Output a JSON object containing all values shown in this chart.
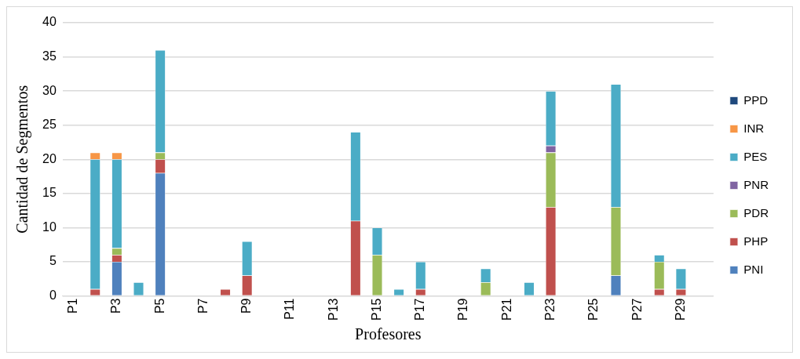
{
  "chart_data": {
    "type": "bar",
    "stacked": true,
    "xlabel": "Profesores",
    "ylabel": "Cantidad de Segmentos",
    "categories": [
      "P1",
      null,
      "P3",
      null,
      "P5",
      null,
      "P7",
      null,
      "P9",
      null,
      "P11",
      null,
      "P13",
      null,
      "P15",
      null,
      "P17",
      null,
      "P19",
      null,
      "P21",
      null,
      "P23",
      null,
      "P25",
      null,
      "P27",
      null,
      "P29",
      null
    ],
    "series": [
      {
        "name": "PNI",
        "color": "#4f81bd",
        "values": [
          0,
          0,
          5,
          0,
          18,
          0,
          0,
          0,
          0,
          0,
          0,
          0,
          0,
          0,
          0,
          0,
          0,
          0,
          0,
          0,
          0,
          0,
          0,
          0,
          0,
          3,
          0,
          0,
          0,
          0
        ]
      },
      {
        "name": "PHP",
        "color": "#c0504d",
        "values": [
          0,
          1,
          1,
          0,
          2,
          0,
          0,
          1,
          3,
          0,
          0,
          0,
          0,
          11,
          0,
          0,
          1,
          0,
          0,
          0,
          0,
          0,
          13,
          0,
          0,
          0,
          0,
          1,
          1,
          0
        ]
      },
      {
        "name": "PDR",
        "color": "#9bbb59",
        "values": [
          0,
          0,
          1,
          0,
          1,
          0,
          0,
          0,
          0,
          0,
          0,
          0,
          0,
          0,
          6,
          0,
          0,
          0,
          0,
          2,
          0,
          0,
          8,
          0,
          0,
          10,
          0,
          4,
          0,
          0
        ]
      },
      {
        "name": "PNR",
        "color": "#8064a2",
        "values": [
          0,
          0,
          0,
          0,
          0,
          0,
          0,
          0,
          0,
          0,
          0,
          0,
          0,
          0,
          0,
          0,
          0,
          0,
          0,
          0,
          0,
          0,
          1,
          0,
          0,
          0,
          0,
          0,
          0,
          0
        ]
      },
      {
        "name": "PES",
        "color": "#4bacc6",
        "values": [
          0,
          19,
          13,
          2,
          15,
          0,
          0,
          0,
          5,
          0,
          0,
          0,
          0,
          13,
          4,
          1,
          4,
          0,
          0,
          2,
          0,
          2,
          8,
          0,
          0,
          18,
          0,
          1,
          3,
          0
        ]
      },
      {
        "name": "INR",
        "color": "#f79646",
        "values": [
          0,
          1,
          1,
          0,
          0,
          0,
          0,
          0,
          0,
          0,
          0,
          0,
          0,
          0,
          0,
          0,
          0,
          0,
          0,
          0,
          0,
          0,
          0,
          0,
          0,
          0,
          0,
          0,
          0,
          0
        ]
      },
      {
        "name": "PPD",
        "color": "#1f497d",
        "values": [
          0,
          0,
          0,
          0,
          0,
          0,
          0,
          0,
          0,
          0,
          0,
          0,
          0,
          0,
          0,
          0,
          0,
          0,
          0,
          0,
          0,
          0,
          0,
          0,
          0,
          0,
          0,
          0,
          0,
          0
        ]
      }
    ],
    "ylim": [
      0,
      40
    ],
    "yticks": [
      0,
      5,
      10,
      15,
      20,
      25,
      30,
      35,
      40
    ],
    "grid": "y",
    "legend": "right"
  }
}
